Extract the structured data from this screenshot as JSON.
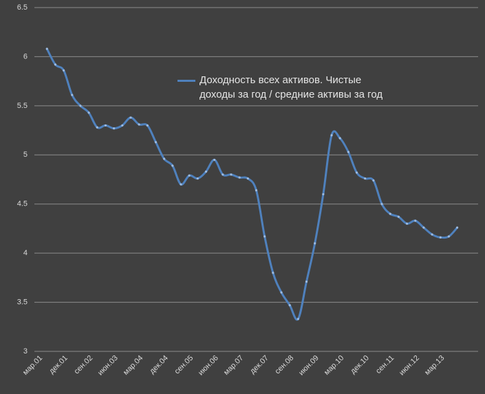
{
  "chart_data": {
    "type": "line",
    "categories": [
      "мар.01",
      null,
      null,
      "дек.01",
      null,
      null,
      "сен.02",
      null,
      null,
      "июн.03",
      null,
      null,
      "мар.04",
      null,
      null,
      "дек.04",
      null,
      null,
      "сен.05",
      null,
      null,
      "июн.06",
      null,
      null,
      "мар.07",
      null,
      null,
      "дек.07",
      null,
      null,
      "сен.08",
      null,
      null,
      "июн.09",
      null,
      null,
      "мар.10",
      null,
      null,
      "дек.10",
      null,
      null,
      "сен.11",
      null,
      null,
      "июн.12",
      null,
      null,
      "мар.13",
      null,
      null,
      null,
      null
    ],
    "series": [
      {
        "name": "Доходность всех активов. Чистые доходы за год / средние активы за год",
        "color": "#4f81bd",
        "values": [
          null,
          6.08,
          5.92,
          5.86,
          5.61,
          5.5,
          5.43,
          5.28,
          5.3,
          5.27,
          5.3,
          5.38,
          5.31,
          5.3,
          5.13,
          4.96,
          4.89,
          4.7,
          4.79,
          4.76,
          4.83,
          4.95,
          4.8,
          4.8,
          4.77,
          4.76,
          4.64,
          4.17,
          3.8,
          3.6,
          3.47,
          3.33,
          3.71,
          4.1,
          4.6,
          5.2,
          5.17,
          5.03,
          4.82,
          4.76,
          4.74,
          4.5,
          4.4,
          4.37,
          4.3,
          4.33,
          4.26,
          4.19,
          4.16,
          4.17,
          4.26,
          null,
          null
        ]
      }
    ],
    "ylim": [
      3,
      6.5
    ],
    "yticks": [
      3,
      3.5,
      4,
      4.5,
      5,
      5.5,
      6,
      6.5
    ],
    "grid": true
  }
}
